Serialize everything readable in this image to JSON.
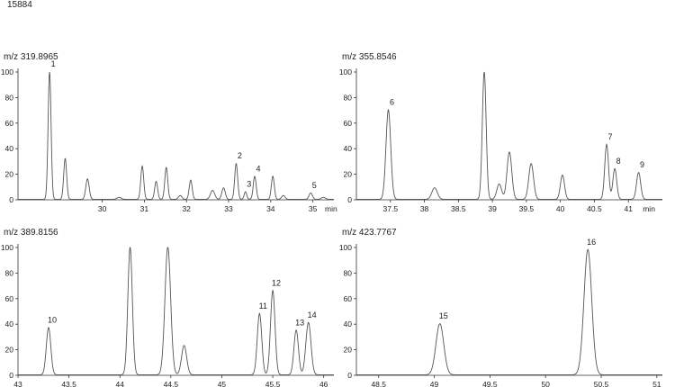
{
  "figure_id": "15884",
  "chart_data": [
    {
      "type": "line",
      "title": "m/z 319.8965",
      "xlim": [
        28.0,
        35.5
      ],
      "ylim": [
        0,
        100
      ],
      "x_ticks": [
        30,
        31,
        32,
        33,
        34,
        35
      ],
      "x_tick_labels": [
        "30",
        "31",
        "32",
        "33",
        "34",
        "35"
      ],
      "x_unit_label": "min",
      "y_ticks": [
        0,
        20,
        40,
        60,
        80,
        100
      ],
      "y_tick_labels": [
        "0",
        "20",
        "40",
        "60",
        "80",
        "100"
      ],
      "line_color": "#555555",
      "peaks": [
        {
          "x": 28.75,
          "y": 100,
          "w": 0.035
        },
        {
          "x": 29.12,
          "y": 32,
          "w": 0.035
        },
        {
          "x": 29.65,
          "y": 16,
          "w": 0.04
        },
        {
          "x": 30.4,
          "y": 1.5,
          "w": 0.05
        },
        {
          "x": 30.95,
          "y": 26,
          "w": 0.035
        },
        {
          "x": 31.28,
          "y": 14,
          "w": 0.035
        },
        {
          "x": 31.52,
          "y": 25,
          "w": 0.035
        },
        {
          "x": 31.85,
          "y": 3,
          "w": 0.04
        },
        {
          "x": 32.1,
          "y": 15,
          "w": 0.035
        },
        {
          "x": 32.62,
          "y": 7,
          "w": 0.05
        },
        {
          "x": 32.88,
          "y": 9,
          "w": 0.04
        },
        {
          "x": 33.18,
          "y": 28,
          "w": 0.035
        },
        {
          "x": 33.4,
          "y": 6,
          "w": 0.03
        },
        {
          "x": 33.62,
          "y": 18,
          "w": 0.035
        },
        {
          "x": 34.05,
          "y": 18,
          "w": 0.035
        },
        {
          "x": 34.3,
          "y": 3,
          "w": 0.04
        },
        {
          "x": 34.95,
          "y": 5,
          "w": 0.04
        },
        {
          "x": 35.25,
          "y": 1.5,
          "w": 0.05
        }
      ],
      "annotations": [
        {
          "label": "1",
          "x": 28.75,
          "y": 100
        },
        {
          "label": "2",
          "x": 33.18,
          "y": 28
        },
        {
          "label": "3",
          "x": 33.4,
          "y": 6
        },
        {
          "label": "4",
          "x": 33.62,
          "y": 18
        },
        {
          "label": "5",
          "x": 34.95,
          "y": 5
        }
      ]
    },
    {
      "type": "line",
      "title": "m/z 355.8546",
      "xlim": [
        37.0,
        41.5
      ],
      "ylim": [
        0,
        100
      ],
      "x_ticks": [
        37.5,
        38,
        38.5,
        39,
        39.5,
        40,
        40.5,
        41
      ],
      "x_tick_labels": [
        "37.5",
        "38",
        "38.5",
        "39",
        "39.5",
        "40",
        "40.5",
        "41"
      ],
      "x_unit_label": "min",
      "y_ticks": [
        0,
        20,
        40,
        60,
        80,
        100
      ],
      "y_tick_labels": [
        "0",
        "20",
        "40",
        "60",
        "80",
        "100"
      ],
      "line_color": "#555555",
      "peaks": [
        {
          "x": 37.47,
          "y": 70,
          "w": 0.035
        },
        {
          "x": 38.15,
          "y": 9,
          "w": 0.04
        },
        {
          "x": 38.88,
          "y": 100,
          "w": 0.028
        },
        {
          "x": 39.1,
          "y": 12,
          "w": 0.035
        },
        {
          "x": 39.25,
          "y": 37,
          "w": 0.035
        },
        {
          "x": 39.57,
          "y": 28,
          "w": 0.035
        },
        {
          "x": 40.03,
          "y": 19,
          "w": 0.03
        },
        {
          "x": 40.68,
          "y": 43,
          "w": 0.028
        },
        {
          "x": 40.8,
          "y": 24,
          "w": 0.028
        },
        {
          "x": 41.15,
          "y": 21,
          "w": 0.03
        }
      ],
      "annotations": [
        {
          "label": "6",
          "x": 37.47,
          "y": 70
        },
        {
          "label": "7",
          "x": 40.68,
          "y": 43
        },
        {
          "label": "8",
          "x": 40.8,
          "y": 24
        },
        {
          "label": "9",
          "x": 41.15,
          "y": 21
        }
      ]
    },
    {
      "type": "line",
      "title": "m/z 389.8156",
      "xlim": [
        43.0,
        46.1
      ],
      "ylim": [
        0,
        100
      ],
      "x_ticks": [
        43,
        43.5,
        44,
        44.5,
        45,
        45.5,
        46
      ],
      "x_tick_labels": [
        "43",
        "43.5",
        "44",
        "44.5",
        "45",
        "45.5",
        "46"
      ],
      "x_unit_label": "",
      "y_ticks": [
        0,
        20,
        40,
        60,
        80,
        100
      ],
      "y_tick_labels": [
        "0",
        "20",
        "40",
        "60",
        "80",
        "100"
      ],
      "line_color": "#555555",
      "peaks": [
        {
          "x": 43.3,
          "y": 37,
          "w": 0.022
        },
        {
          "x": 44.1,
          "y": 100,
          "w": 0.022
        },
        {
          "x": 44.47,
          "y": 100,
          "w": 0.028
        },
        {
          "x": 44.63,
          "y": 23,
          "w": 0.025
        },
        {
          "x": 45.37,
          "y": 48,
          "w": 0.022
        },
        {
          "x": 45.5,
          "y": 66,
          "w": 0.022
        },
        {
          "x": 45.73,
          "y": 35,
          "w": 0.022
        },
        {
          "x": 45.85,
          "y": 41,
          "w": 0.025
        }
      ],
      "annotations": [
        {
          "label": "10",
          "x": 43.3,
          "y": 37
        },
        {
          "label": "11",
          "x": 45.37,
          "y": 48
        },
        {
          "label": "12",
          "x": 45.5,
          "y": 66
        },
        {
          "label": "13",
          "x": 45.73,
          "y": 35
        },
        {
          "label": "14",
          "x": 45.85,
          "y": 41
        }
      ]
    },
    {
      "type": "line",
      "title": "m/z 423.7767",
      "xlim": [
        48.3,
        51.05
      ],
      "ylim": [
        0,
        100
      ],
      "x_ticks": [
        48.5,
        49,
        49.5,
        50,
        50.5,
        51
      ],
      "x_tick_labels": [
        "48.5",
        "49",
        "49.5",
        "50",
        "50.5",
        "51"
      ],
      "x_unit_label": "",
      "y_ticks": [
        0,
        20,
        40,
        60,
        80,
        100
      ],
      "y_tick_labels": [
        "0",
        "20",
        "40",
        "60",
        "80",
        "100"
      ],
      "line_color": "#555555",
      "peaks": [
        {
          "x": 49.05,
          "y": 40,
          "w": 0.035
        },
        {
          "x": 50.38,
          "y": 98,
          "w": 0.035
        }
      ],
      "annotations": [
        {
          "label": "15",
          "x": 49.05,
          "y": 40
        },
        {
          "label": "16",
          "x": 50.38,
          "y": 98
        }
      ]
    }
  ]
}
